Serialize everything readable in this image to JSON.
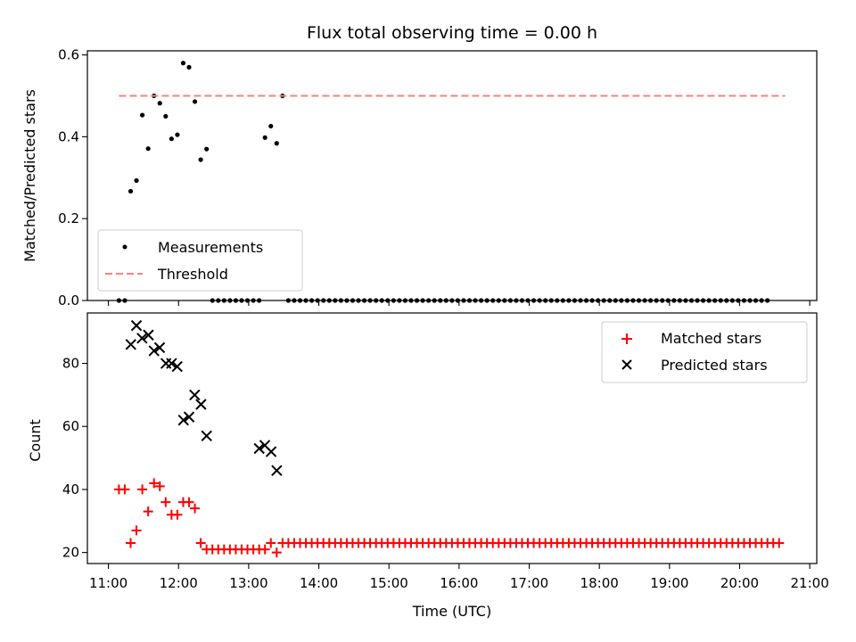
{
  "chart_data": [
    {
      "id": "ratio",
      "type": "scatter",
      "title": "Flux total observing time = 0.00 h",
      "ylabel": "Matched/Predicted stars",
      "xlabel": "",
      "xlim": [
        10.7,
        21.1
      ],
      "ylim": [
        0,
        0.61
      ],
      "yticks": [
        0,
        0.2,
        0.4,
        0.6
      ],
      "ytick_labels": [
        "0.0",
        "0.2",
        "0.4",
        "0.6"
      ],
      "xticks": [
        11,
        12,
        13,
        14,
        15,
        16,
        17,
        18,
        19,
        20,
        21
      ],
      "legend_position": "lower-left",
      "series": [
        {
          "name": "Measurements",
          "marker": "dot",
          "color": "#000000",
          "start": 11.15,
          "step": 0.0833,
          "values": [
            0,
            0,
            0.267,
            0.293,
            0.453,
            0.371,
            0.5,
            0.482,
            0.45,
            0.395,
            0.405,
            0.58,
            0.57,
            0.486,
            0.344,
            0.37,
            0,
            0,
            0,
            0,
            0,
            0,
            0,
            0,
            0,
            0.398,
            0.426,
            0.384,
            0.5,
            0,
            0,
            0,
            0,
            0,
            0,
            0,
            0,
            0,
            0,
            0,
            0,
            0,
            0,
            0,
            0,
            0,
            0,
            0,
            0,
            0,
            0,
            0,
            0,
            0,
            0,
            0,
            0,
            0,
            0,
            0,
            0,
            0,
            0,
            0,
            0,
            0,
            0,
            0,
            0,
            0,
            0,
            0,
            0,
            0,
            0,
            0,
            0,
            0,
            0,
            0,
            0,
            0,
            0,
            0,
            0,
            0,
            0,
            0,
            0,
            0,
            0,
            0,
            0,
            0,
            0,
            0,
            0,
            0,
            0,
            0,
            0,
            0,
            0,
            0,
            0,
            0,
            0,
            0,
            0,
            0,
            0,
            0
          ]
        },
        {
          "name": "Threshold",
          "marker": "dashed-line",
          "color": "#ff7f7f",
          "x": [
            11.15,
            20.65
          ],
          "y": [
            0.5,
            0.5
          ]
        }
      ]
    },
    {
      "id": "counts",
      "type": "scatter",
      "title": "",
      "ylabel": "Count",
      "xlabel": "Time (UTC)",
      "xlim": [
        10.7,
        21.1
      ],
      "ylim": [
        16.5,
        96
      ],
      "yticks": [
        20,
        40,
        60,
        80
      ],
      "ytick_labels": [
        "20",
        "40",
        "60",
        "80"
      ],
      "xticks": [
        11,
        12,
        13,
        14,
        15,
        16,
        17,
        18,
        19,
        20,
        21
      ],
      "xtick_labels": [
        "11:00",
        "12:00",
        "13:00",
        "14:00",
        "15:00",
        "16:00",
        "17:00",
        "18:00",
        "19:00",
        "20:00",
        "21:00"
      ],
      "legend_position": "upper-right",
      "series": [
        {
          "name": "Matched stars",
          "marker": "plus",
          "color": "#ff0000",
          "start": 11.15,
          "step": 0.0833,
          "values": [
            40,
            40,
            23,
            27,
            40,
            33,
            42,
            41,
            36,
            32,
            32,
            36,
            36,
            34,
            23,
            21,
            21,
            21,
            21,
            21,
            21,
            21,
            21,
            21,
            21,
            21,
            23,
            20,
            23,
            23,
            23,
            23,
            23,
            23,
            23,
            23,
            23,
            23,
            23,
            23,
            23,
            23,
            23,
            23,
            23,
            23,
            23,
            23,
            23,
            23,
            23,
            23,
            23,
            23,
            23,
            23,
            23,
            23,
            23,
            23,
            23,
            23,
            23,
            23,
            23,
            23,
            23,
            23,
            23,
            23,
            23,
            23,
            23,
            23,
            23,
            23,
            23,
            23,
            23,
            23,
            23,
            23,
            23,
            23,
            23,
            23,
            23,
            23,
            23,
            23,
            23,
            23,
            23,
            23,
            23,
            23,
            23,
            23,
            23,
            23,
            23,
            23,
            23,
            23,
            23,
            23,
            23,
            23,
            23,
            23,
            23,
            23,
            23,
            23
          ]
        },
        {
          "name": "Predicted stars",
          "marker": "x",
          "color": "#000000",
          "x": [
            11.32,
            11.4,
            11.48,
            11.57,
            11.65,
            11.73,
            11.82,
            11.9,
            11.98,
            12.07,
            12.15,
            12.23,
            12.32,
            12.4,
            13.15,
            13.23,
            13.32,
            13.4
          ],
          "y": [
            86,
            92,
            88,
            89,
            84,
            85,
            80,
            80,
            79,
            62,
            63,
            70,
            67,
            57,
            53,
            54,
            52,
            46
          ]
        }
      ]
    }
  ]
}
